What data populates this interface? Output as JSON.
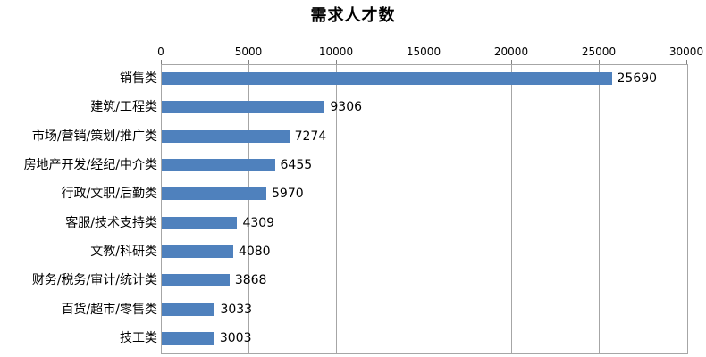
{
  "chart_data": {
    "type": "bar",
    "orientation": "horizontal",
    "title": "需求人才数",
    "categories": [
      "销售类",
      "建筑/工程类",
      "市场/营销/策划/推广类",
      "房地产开发/经纪/中介类",
      "行政/文职/后勤类",
      "客服/技术支持类",
      "文教/科研类",
      "财务/税务/审计/统计类",
      "百货/超市/零售类",
      "技工类"
    ],
    "values": [
      25690,
      9306,
      7274,
      6455,
      5970,
      4309,
      4080,
      3868,
      3033,
      3003
    ],
    "xlabel": "",
    "ylabel": "",
    "xlim": [
      0,
      30000
    ],
    "x_ticks": [
      0,
      5000,
      10000,
      15000,
      20000,
      25000,
      30000
    ],
    "x_tick_labels": [
      "0",
      "5000",
      "10000",
      "15000",
      "20000",
      "25000",
      "30000"
    ],
    "axis_position": "top",
    "grid": true,
    "data_labels": true,
    "legend": "none",
    "colors": {
      "bar": "#4F81BD",
      "gridline": "#A6A6A6",
      "tick_mark": "#808080",
      "text": "#000000",
      "background": "#FFFFFF"
    }
  }
}
